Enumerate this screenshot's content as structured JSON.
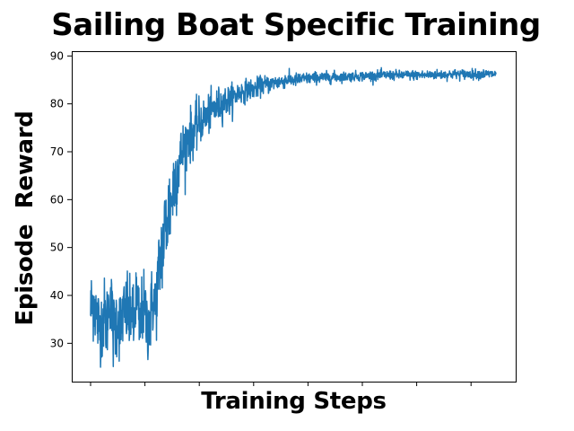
{
  "chart_data": {
    "type": "line",
    "title": "Sailing Boat Specific Training",
    "xlabel": "Training Steps",
    "ylabel": "Episode  Reward",
    "ylim": [
      22,
      91
    ],
    "yticks": [
      30,
      40,
      50,
      60,
      70,
      80,
      90
    ],
    "xtick_count": 8,
    "xtick_labels_shown": false,
    "grid": false,
    "legend": "none",
    "series": [
      {
        "color": "#1f77b4",
        "x": [
          0,
          6,
          12,
          18,
          24,
          30,
          36,
          42,
          50,
          56,
          60,
          64,
          68,
          72,
          76,
          80,
          84,
          88,
          92,
          96,
          100,
          105,
          110,
          115,
          120,
          125,
          130,
          135,
          140,
          145,
          150,
          155,
          160,
          165,
          170,
          180,
          190,
          200,
          210,
          220,
          230,
          240,
          250,
          260,
          270,
          280,
          290,
          300,
          310,
          320,
          330,
          340,
          350,
          360,
          370,
          380,
          390,
          400,
          410,
          420,
          430,
          440,
          450,
          460,
          470,
          480,
          490,
          500,
          510,
          520,
          530,
          540,
          550,
          560,
          570,
          580,
          590,
          600,
          610,
          620,
          630,
          640,
          650,
          660,
          670,
          680,
          690,
          700,
          710,
          720,
          730,
          740,
          750
        ],
        "values": [
          37,
          39,
          35,
          33,
          36,
          34,
          41,
          32,
          36,
          33,
          37,
          35,
          38,
          34,
          39,
          32,
          40,
          36,
          33,
          38,
          36,
          34,
          35,
          39,
          37,
          44,
          48,
          52,
          55,
          58,
          60,
          64,
          66,
          68,
          70,
          73,
          74,
          76,
          77,
          78,
          79,
          80,
          80.5,
          81,
          82,
          82.5,
          83,
          83,
          83.5,
          84,
          84,
          84.5,
          84.5,
          85,
          85,
          85,
          85.2,
          85.3,
          85.4,
          85.5,
          85.5,
          85.5,
          85.6,
          85.6,
          85.7,
          85.7,
          85.8,
          85.8,
          85.8,
          85.9,
          85.9,
          86,
          86,
          86,
          86,
          86,
          86,
          86,
          86,
          86,
          86.1,
          86.1,
          86.1,
          86.1,
          86.2,
          86.2,
          86.2,
          86.2,
          86.2,
          86.2,
          86.2,
          86.2,
          86.2
        ],
        "noise": [
          4,
          4,
          4,
          4,
          4,
          4,
          4,
          4,
          4,
          4,
          4,
          4,
          4,
          4,
          4,
          4,
          4,
          4,
          4,
          4,
          4,
          4,
          4,
          4,
          4,
          4,
          5,
          5,
          5,
          5,
          5,
          4.5,
          4,
          3.5,
          3,
          3,
          2.5,
          2.5,
          2,
          2,
          2,
          1.8,
          1.6,
          1.5,
          1.3,
          1.2,
          1.1,
          1,
          1,
          1,
          0.9,
          0.8,
          0.8,
          0.8,
          0.7,
          0.7,
          0.7,
          0.6,
          0.6,
          0.6,
          0.6,
          0.6,
          0.6,
          0.5,
          0.5,
          0.5,
          0.5,
          0.5,
          0.5,
          0.5,
          0.5,
          0.5,
          0.5,
          0.5,
          0.5,
          0.5,
          0.5,
          0.5,
          0.5,
          0.5,
          0.5,
          0.5,
          0.5,
          0.5,
          0.5,
          0.5,
          0.5,
          0.5,
          0.5,
          0.5,
          0.5,
          0.5,
          0.5
        ]
      }
    ]
  }
}
